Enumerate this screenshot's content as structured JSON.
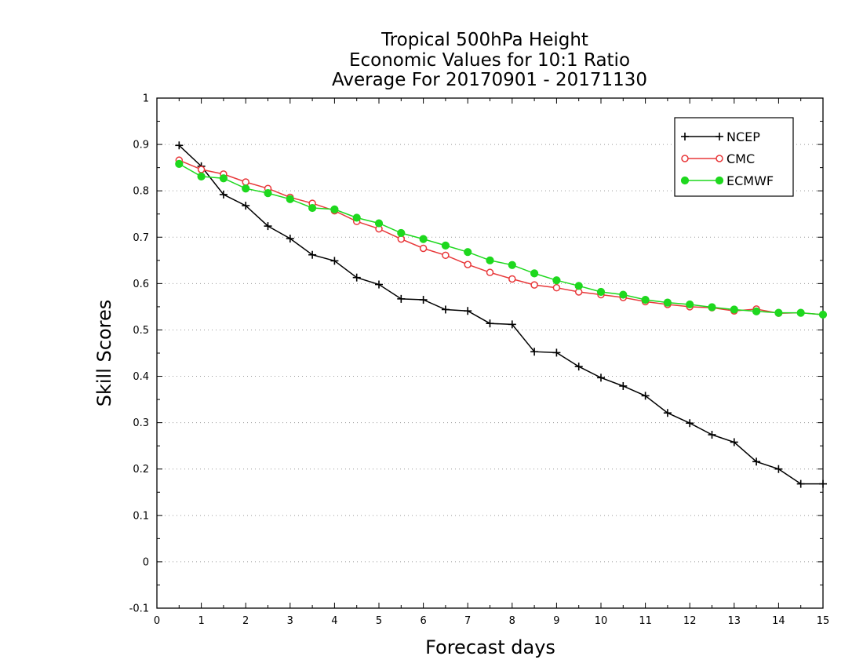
{
  "chart_data": {
    "type": "line",
    "title_lines": [
      "Tropical 500hPa Height",
      "Economic Values for 10:1 Ratio",
      "Average For 20170901 - 20171130"
    ],
    "xlabel": "Forecast days",
    "ylabel": "Skill Scores",
    "xlim": [
      0,
      15
    ],
    "ylim": [
      -0.1,
      1
    ],
    "xticks": [
      0,
      1,
      2,
      3,
      4,
      5,
      6,
      7,
      8,
      9,
      10,
      11,
      12,
      13,
      14,
      15
    ],
    "yticks": [
      -0.1,
      0,
      0.1,
      0.2,
      0.3,
      0.4,
      0.5,
      0.6,
      0.7,
      0.8,
      0.9,
      1
    ],
    "ytick_labels": [
      "-0.1",
      "0",
      "0.1",
      "0.2",
      "0.3",
      "0.4",
      "0.5",
      "0.6",
      "0.7",
      "0.8",
      "0.9",
      "1"
    ],
    "grid": "horizontal dotted",
    "legend_position": "top-right",
    "x": [
      0.5,
      1,
      1.5,
      2,
      2.5,
      3,
      3.5,
      4,
      4.5,
      5,
      5.5,
      6,
      6.5,
      7,
      7.5,
      8,
      8.5,
      9,
      9.5,
      10,
      10.5,
      11,
      11.5,
      12,
      12.5,
      13,
      13.5,
      14,
      14.5,
      15
    ],
    "series": [
      {
        "name": "NCEP",
        "color": "#000000",
        "marker": "plus",
        "values": [
          0.898,
          0.853,
          0.792,
          0.768,
          0.724,
          0.697,
          0.662,
          0.649,
          0.613,
          0.598,
          0.567,
          0.565,
          0.544,
          0.541,
          0.514,
          0.512,
          0.453,
          0.451,
          0.421,
          0.397,
          0.379,
          0.358,
          0.321,
          0.299,
          0.274,
          0.258,
          0.216,
          0.2,
          0.168,
          0.168
        ]
      },
      {
        "name": "CMC",
        "color": "#e8383a",
        "marker": "open-circle",
        "values": [
          0.866,
          0.846,
          0.836,
          0.819,
          0.805,
          0.786,
          0.773,
          0.757,
          0.734,
          0.718,
          0.696,
          0.676,
          0.661,
          0.641,
          0.624,
          0.61,
          0.597,
          0.591,
          0.582,
          0.576,
          0.57,
          0.561,
          0.555,
          0.55,
          0.548,
          0.541,
          0.545,
          0.536,
          0.537,
          0.533
        ]
      },
      {
        "name": "ECMWF",
        "color": "#1ed81e",
        "marker": "filled-circle",
        "values": [
          0.858,
          0.831,
          0.827,
          0.805,
          0.795,
          0.782,
          0.763,
          0.76,
          0.742,
          0.73,
          0.709,
          0.696,
          0.682,
          0.668,
          0.65,
          0.64,
          0.622,
          0.607,
          0.595,
          0.582,
          0.576,
          0.565,
          0.559,
          0.555,
          0.549,
          0.544,
          0.54,
          0.537,
          0.537,
          0.533
        ]
      }
    ]
  }
}
